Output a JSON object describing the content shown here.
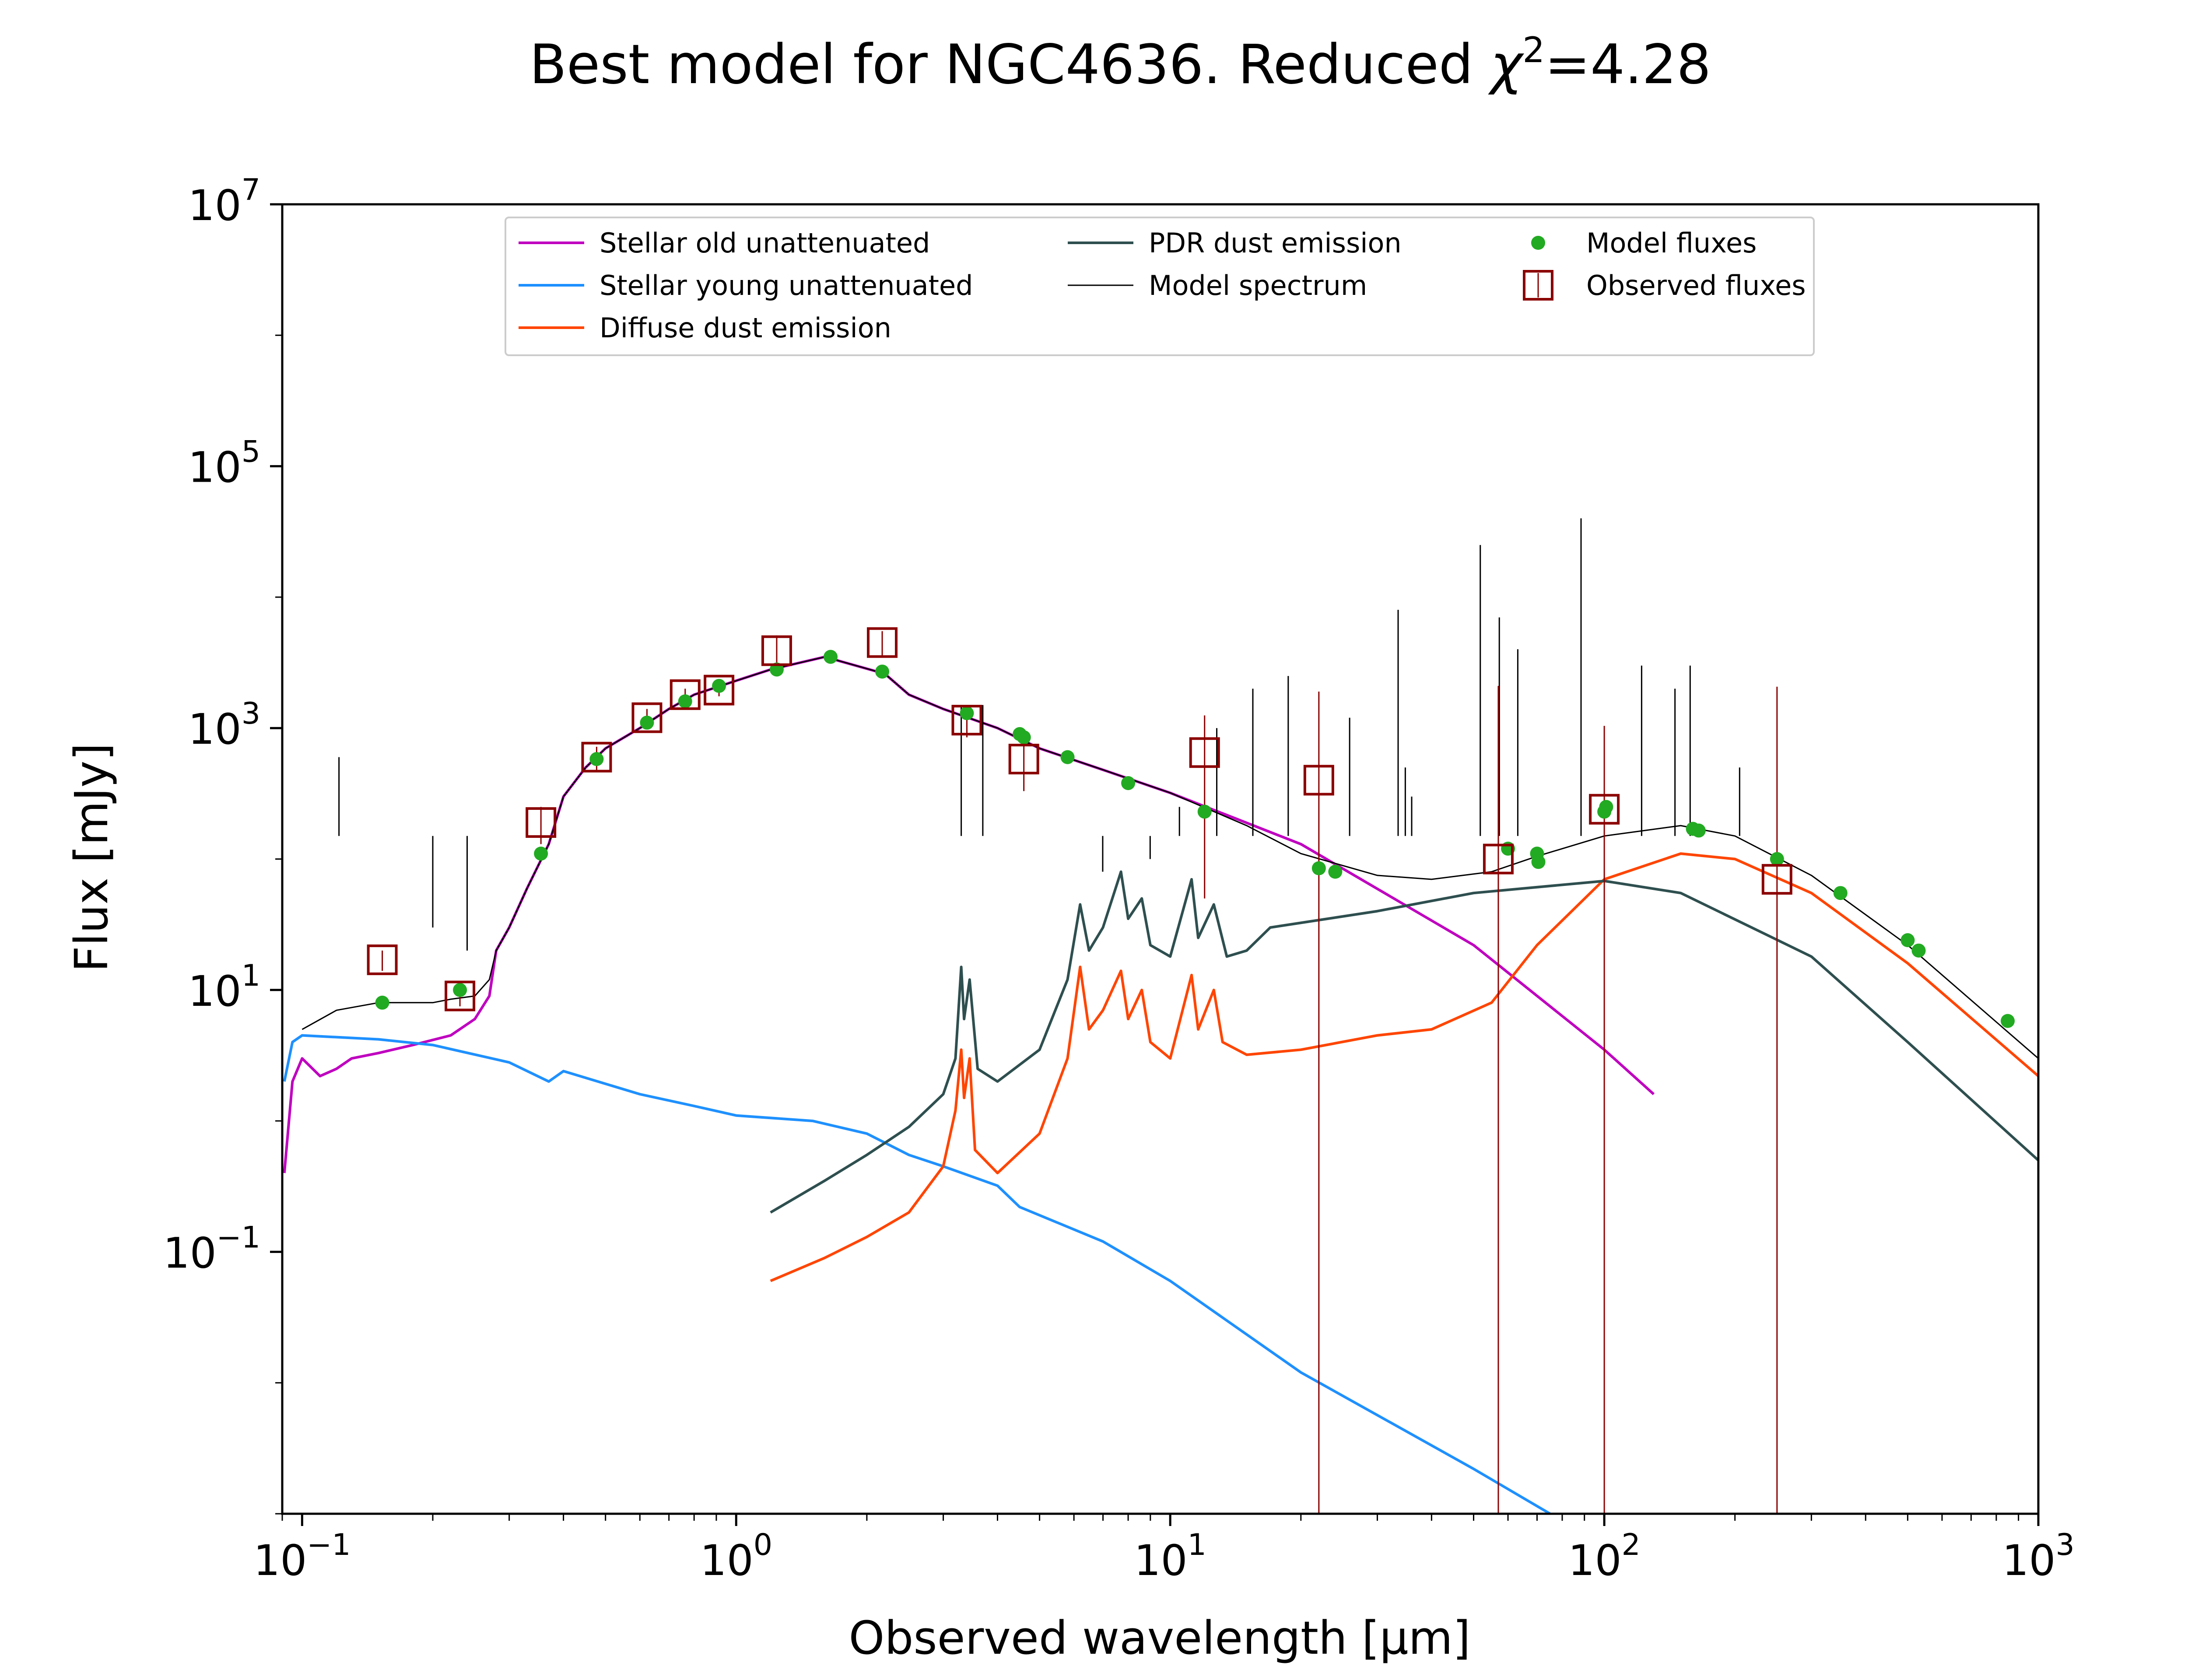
{
  "chart_data": {
    "type": "line",
    "title_prefix": "Best model for NGC4636. Reduced ",
    "title_symbol": "χ",
    "title_exp": "2",
    "title_suffix": "=4.28",
    "xlabel": "Observed wavelength [μm]",
    "ylabel": "Flux [mJy]",
    "xscale": "log",
    "yscale": "log",
    "xlim": [
      0.09,
      1000
    ],
    "ylim": [
      0.001,
      10000000
    ],
    "x_ticks": [
      {
        "value": 0.1,
        "base": "10",
        "exp": "−1"
      },
      {
        "value": 1,
        "base": "10",
        "exp": "0"
      },
      {
        "value": 10,
        "base": "10",
        "exp": "1"
      },
      {
        "value": 100,
        "base": "10",
        "exp": "2"
      },
      {
        "value": 1000,
        "base": "10",
        "exp": "3"
      }
    ],
    "y_ticks": [
      {
        "value": 0.1,
        "base": "10",
        "exp": "−1"
      },
      {
        "value": 10,
        "base": "10",
        "exp": "1"
      },
      {
        "value": 1000,
        "base": "10",
        "exp": "3"
      },
      {
        "value": 100000,
        "base": "10",
        "exp": "5"
      },
      {
        "value": 10000000,
        "base": "10",
        "exp": "7"
      }
    ],
    "legend_position": "upper center",
    "series": [
      {
        "name": "Stellar old unattenuated",
        "color": "#bf00bf",
        "width": 6,
        "points": [
          [
            0.091,
            0.4
          ],
          [
            0.095,
            2
          ],
          [
            0.1,
            3
          ],
          [
            0.11,
            2.2
          ],
          [
            0.12,
            2.5
          ],
          [
            0.13,
            3
          ],
          [
            0.15,
            3.3
          ],
          [
            0.18,
            3.8
          ],
          [
            0.22,
            4.5
          ],
          [
            0.25,
            6
          ],
          [
            0.27,
            9
          ],
          [
            0.28,
            20
          ],
          [
            0.3,
            30
          ],
          [
            0.33,
            60
          ],
          [
            0.37,
            130
          ],
          [
            0.4,
            300
          ],
          [
            0.45,
            500
          ],
          [
            0.5,
            700
          ],
          [
            0.6,
            1000
          ],
          [
            0.7,
            1400
          ],
          [
            0.8,
            1800
          ],
          [
            1.0,
            2300
          ],
          [
            1.2,
            2800
          ],
          [
            1.6,
            3500
          ],
          [
            2.2,
            2600
          ],
          [
            2.5,
            1800
          ],
          [
            3,
            1400
          ],
          [
            4,
            1000
          ],
          [
            5,
            700
          ],
          [
            7,
            480
          ],
          [
            10,
            320
          ],
          [
            20,
            130
          ],
          [
            50,
            22
          ],
          [
            100,
            3.5
          ],
          [
            130,
            1.6
          ]
        ]
      },
      {
        "name": "Stellar young unattenuated",
        "color": "#1e90ff",
        "width": 6,
        "points": [
          [
            0.091,
            2
          ],
          [
            0.095,
            4
          ],
          [
            0.1,
            4.5
          ],
          [
            0.15,
            4.2
          ],
          [
            0.2,
            3.8
          ],
          [
            0.3,
            2.8
          ],
          [
            0.37,
            2
          ],
          [
            0.4,
            2.4
          ],
          [
            0.6,
            1.6
          ],
          [
            0.8,
            1.3
          ],
          [
            1.0,
            1.1
          ],
          [
            1.5,
            1.0
          ],
          [
            2,
            0.8
          ],
          [
            2.5,
            0.55
          ],
          [
            3,
            0.45
          ],
          [
            4,
            0.32
          ],
          [
            4.5,
            0.22
          ],
          [
            7,
            0.12
          ],
          [
            10,
            0.06
          ],
          [
            20,
            0.012
          ],
          [
            50,
            0.0022
          ],
          [
            75,
            0.001
          ]
        ]
      },
      {
        "name": "Diffuse dust emission",
        "color": "#ff4500",
        "width": 6,
        "points": [
          [
            1.2,
            0.06
          ],
          [
            1.6,
            0.09
          ],
          [
            2,
            0.13
          ],
          [
            2.5,
            0.2
          ],
          [
            3,
            0.45
          ],
          [
            3.2,
            1.2
          ],
          [
            3.3,
            3.5
          ],
          [
            3.35,
            1.5
          ],
          [
            3.45,
            3
          ],
          [
            3.55,
            0.6
          ],
          [
            4,
            0.4
          ],
          [
            5,
            0.8
          ],
          [
            5.8,
            3
          ],
          [
            6.2,
            15
          ],
          [
            6.5,
            5
          ],
          [
            7,
            7
          ],
          [
            7.7,
            14
          ],
          [
            8,
            6
          ],
          [
            8.6,
            10
          ],
          [
            9,
            4
          ],
          [
            10,
            3
          ],
          [
            11.2,
            13
          ],
          [
            11.6,
            5
          ],
          [
            12.6,
            10
          ],
          [
            13.2,
            4
          ],
          [
            15,
            3.2
          ],
          [
            20,
            3.5
          ],
          [
            30,
            4.5
          ],
          [
            40,
            5
          ],
          [
            55,
            8
          ],
          [
            70,
            22
          ],
          [
            100,
            70
          ],
          [
            150,
            110
          ],
          [
            200,
            100
          ],
          [
            300,
            55
          ],
          [
            500,
            16
          ],
          [
            1000,
            2.2
          ]
        ]
      },
      {
        "name": "PDR dust emission",
        "color": "#2f4f4f",
        "width": 6,
        "points": [
          [
            1.2,
            0.2
          ],
          [
            1.6,
            0.35
          ],
          [
            2,
            0.55
          ],
          [
            2.5,
            0.9
          ],
          [
            3,
            1.6
          ],
          [
            3.2,
            3
          ],
          [
            3.3,
            15
          ],
          [
            3.35,
            6
          ],
          [
            3.45,
            12
          ],
          [
            3.6,
            2.5
          ],
          [
            4,
            2
          ],
          [
            5,
            3.5
          ],
          [
            5.8,
            12
          ],
          [
            6.2,
            45
          ],
          [
            6.5,
            20
          ],
          [
            7,
            30
          ],
          [
            7.7,
            80
          ],
          [
            8,
            35
          ],
          [
            8.6,
            50
          ],
          [
            9,
            22
          ],
          [
            10,
            18
          ],
          [
            11.2,
            70
          ],
          [
            11.6,
            25
          ],
          [
            12.6,
            45
          ],
          [
            13.5,
            18
          ],
          [
            15,
            20
          ],
          [
            17,
            30
          ],
          [
            30,
            40
          ],
          [
            50,
            55
          ],
          [
            100,
            68
          ],
          [
            150,
            55
          ],
          [
            300,
            18
          ],
          [
            500,
            4
          ],
          [
            1000,
            0.5
          ]
        ]
      },
      {
        "name": "Model spectrum",
        "color": "#000000",
        "width": 3,
        "points": [
          [
            0.1,
            5
          ],
          [
            0.12,
            7
          ],
          [
            0.15,
            8
          ],
          [
            0.2,
            8
          ],
          [
            0.22,
            8.5
          ],
          [
            0.25,
            9
          ],
          [
            0.27,
            12
          ],
          [
            0.28,
            20
          ],
          [
            0.3,
            30
          ],
          [
            0.33,
            60
          ],
          [
            0.37,
            130
          ],
          [
            0.4,
            300
          ],
          [
            0.45,
            500
          ],
          [
            0.5,
            700
          ],
          [
            0.6,
            1000
          ],
          [
            0.7,
            1400
          ],
          [
            0.8,
            1800
          ],
          [
            1.0,
            2300
          ],
          [
            1.2,
            2800
          ],
          [
            1.6,
            3500
          ],
          [
            2.2,
            2600
          ],
          [
            2.5,
            1800
          ],
          [
            3,
            1400
          ],
          [
            4,
            1000
          ],
          [
            5,
            700
          ],
          [
            7,
            480
          ],
          [
            10,
            320
          ],
          [
            15,
            180
          ],
          [
            20,
            110
          ],
          [
            30,
            75
          ],
          [
            40,
            70
          ],
          [
            55,
            80
          ],
          [
            70,
            105
          ],
          [
            100,
            150
          ],
          [
            150,
            180
          ],
          [
            200,
            150
          ],
          [
            300,
            75
          ],
          [
            500,
            22
          ],
          [
            1000,
            3
          ]
        ]
      }
    ],
    "emission_lines": {
      "color": "#000000",
      "points": [
        [
          0.1216,
          600
        ],
        [
          0.2,
          30
        ],
        [
          0.24,
          20
        ],
        [
          0.373,
          150
        ],
        [
          3.3,
          1500
        ],
        [
          3.7,
          1500
        ],
        [
          6.99,
          80
        ],
        [
          8.99,
          100
        ],
        [
          10.5,
          250
        ],
        [
          12.8,
          1000
        ],
        [
          15.5,
          2000
        ],
        [
          18.7,
          2500
        ],
        [
          25.9,
          1200
        ],
        [
          33.5,
          8000
        ],
        [
          34.8,
          500
        ],
        [
          36,
          300
        ],
        [
          51.8,
          25000
        ],
        [
          57.3,
          7000
        ],
        [
          63.2,
          4000
        ],
        [
          88.4,
          40000
        ],
        [
          121.9,
          3000
        ],
        [
          145.5,
          2000
        ],
        [
          157.7,
          3000
        ],
        [
          205,
          500
        ]
      ]
    },
    "model_fluxes": {
      "name": "Model fluxes",
      "color": "#22aa22",
      "points": [
        [
          0.153,
          8
        ],
        [
          0.231,
          10
        ],
        [
          0.355,
          110
        ],
        [
          0.477,
          580
        ],
        [
          0.623,
          1100
        ],
        [
          0.763,
          1600
        ],
        [
          0.913,
          2100
        ],
        [
          1.24,
          2800
        ],
        [
          1.65,
          3500
        ],
        [
          2.17,
          2700
        ],
        [
          3.4,
          1300
        ],
        [
          4.5,
          900
        ],
        [
          4.6,
          850
        ],
        [
          5.8,
          600
        ],
        [
          8.0,
          380
        ],
        [
          12,
          230
        ],
        [
          22,
          85
        ],
        [
          24,
          80
        ],
        [
          60,
          120
        ],
        [
          70,
          110
        ],
        [
          70.5,
          95
        ],
        [
          100,
          230
        ],
        [
          101,
          250
        ],
        [
          160,
          170
        ],
        [
          165,
          165
        ],
        [
          250,
          100
        ],
        [
          350,
          55
        ],
        [
          500,
          24
        ],
        [
          530,
          20
        ],
        [
          850,
          5.8
        ]
      ]
    },
    "observed_fluxes": {
      "name": "Observed fluxes",
      "color": "#8b0000",
      "points": [
        [
          0.153,
          17,
          3
        ],
        [
          0.231,
          9,
          1.5
        ],
        [
          0.355,
          190,
          60
        ],
        [
          0.477,
          600,
          120
        ],
        [
          0.623,
          1200,
          200
        ],
        [
          0.763,
          1800,
          200
        ],
        [
          0.913,
          1950,
          200
        ],
        [
          1.24,
          3900,
          1200
        ],
        [
          2.17,
          4500,
          1000
        ],
        [
          3.4,
          1150,
          300
        ],
        [
          4.6,
          580,
          250
        ],
        [
          12,
          650,
          600
        ],
        [
          22,
          400,
          1500
        ],
        [
          57,
          100,
          2000
        ],
        [
          100,
          240,
          800
        ],
        [
          250,
          70,
          2000
        ]
      ]
    }
  }
}
